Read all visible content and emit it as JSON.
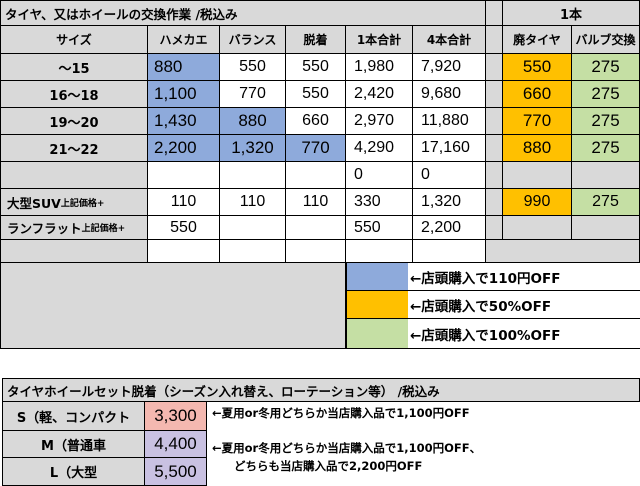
{
  "table1": {
    "title": "タイヤ、又はホイールの交換作業 /税込み",
    "right_title": "1本",
    "headers": [
      "サイズ",
      "ハメカエ",
      "バランス",
      "脱着",
      "1本合計",
      "4本合計",
      "廃タイヤ",
      "バルブ交換"
    ],
    "rows": [
      {
        "size": "〜15",
        "values": [
          "880",
          "550",
          "550",
          "1,980",
          "7,920",
          "550",
          "275"
        ]
      },
      {
        "size": "16〜18",
        "values": [
          "1,100",
          "770",
          "550",
          "2,420",
          "9,680",
          "660",
          "275"
        ]
      },
      {
        "size": "19〜20",
        "values": [
          "1,430",
          "880",
          "660",
          "2,970",
          "11,880",
          "770",
          "275"
        ]
      },
      {
        "size": "21〜22",
        "values": [
          "2,200",
          "1,320",
          "770",
          "4,290",
          "17,160",
          "880",
          "275"
        ]
      }
    ],
    "blank_row": [
      "",
      "",
      "",
      "0",
      "0",
      "",
      ""
    ],
    "suv": {
      "label": "大型SUV",
      "small": "上記価格+",
      "values": [
        "110",
        "110",
        "110",
        "330",
        "1,320",
        "990",
        "275"
      ]
    },
    "runflat": {
      "label": "ランフラット",
      "small": "上記価格+",
      "values": [
        "550",
        "",
        "",
        "550",
        "2,200",
        "",
        ""
      ]
    }
  },
  "legend": [
    {
      "color": "#8eaadb",
      "text": "←店頭購入で110円OFF"
    },
    {
      "color": "#ffc000",
      "text": "←店頭購入で50%OFF"
    },
    {
      "color": "#c5dfa4",
      "text": "←店頭購入で100%OFF"
    }
  ],
  "table2": {
    "title": "タイヤホイールセット脱着（シーズン入れ替え、ローテーション等） /税込み",
    "rows": [
      {
        "label": "S（軽、コンパクト",
        "price": "3,300",
        "color": "#f4b8b0"
      },
      {
        "label": "M（普通車",
        "price": "4,400",
        "color": "#c9c1e2"
      },
      {
        "label": "L（大型",
        "price": "5,500",
        "color": "#c9c1e2"
      }
    ],
    "note1": "←夏用or冬用どちらか当店購入品で1,100円OFF",
    "note2_line1": "←夏用or冬用どちらか当店購入品で1,100円OFF、",
    "note2_line2": "どちらも当店購入品で2,200円OFF"
  }
}
